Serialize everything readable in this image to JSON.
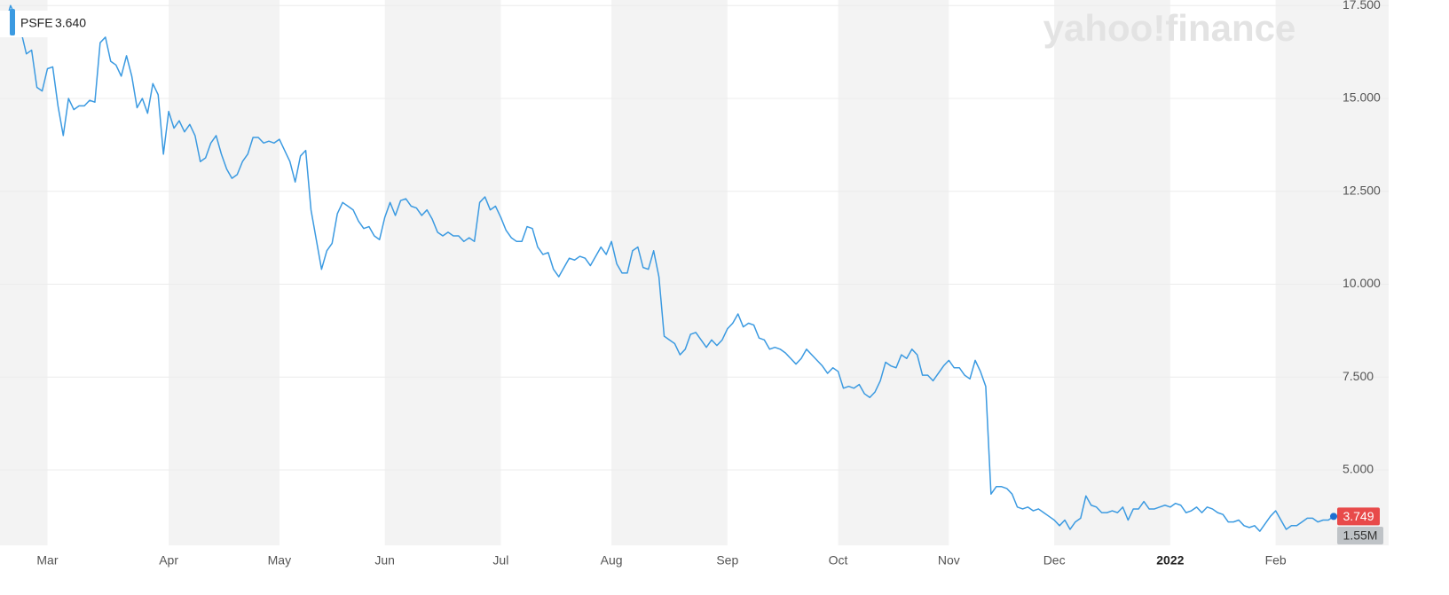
{
  "chart_data": {
    "type": "line",
    "watermark": "yahoo!finance",
    "legend": "top-left",
    "legend_value": {
      "value": 3.64,
      "label": "3.640"
    },
    "last_price": {
      "value": 3.749,
      "label": "3.749"
    },
    "last_volume": {
      "value": 1550000,
      "label": "1.55M"
    },
    "grid": true,
    "ylim": [
      2.97,
      17.65
    ],
    "yticks": [
      {
        "value": 5,
        "label": "5.000"
      },
      {
        "value": 7.5,
        "label": "7.500"
      },
      {
        "value": 10,
        "label": "10.000"
      },
      {
        "value": 12.5,
        "label": "12.500"
      },
      {
        "value": 15,
        "label": "15.000"
      },
      {
        "value": 17.5,
        "label": "17.500"
      }
    ],
    "categories": [
      null,
      null,
      null,
      null,
      null,
      null,
      null,
      null,
      null,
      "Mar",
      null,
      null,
      null,
      null,
      null,
      null,
      null,
      null,
      null,
      null,
      null,
      null,
      null,
      null,
      null,
      null,
      null,
      null,
      null,
      null,
      null,
      null,
      "Apr",
      null,
      null,
      null,
      null,
      null,
      null,
      null,
      null,
      null,
      null,
      null,
      null,
      null,
      null,
      null,
      null,
      null,
      null,
      null,
      null,
      "May",
      null,
      null,
      null,
      null,
      null,
      null,
      null,
      null,
      null,
      null,
      null,
      null,
      null,
      null,
      null,
      null,
      null,
      null,
      null,
      "Jun",
      null,
      null,
      null,
      null,
      null,
      null,
      null,
      null,
      null,
      null,
      null,
      null,
      null,
      null,
      null,
      null,
      null,
      null,
      null,
      null,
      null,
      "Jul",
      null,
      null,
      null,
      null,
      null,
      null,
      null,
      null,
      null,
      null,
      null,
      null,
      null,
      null,
      null,
      null,
      null,
      null,
      null,
      null,
      "Aug",
      null,
      null,
      null,
      null,
      null,
      null,
      null,
      null,
      null,
      null,
      null,
      null,
      null,
      null,
      null,
      null,
      null,
      null,
      null,
      null,
      null,
      "Sep",
      null,
      null,
      null,
      null,
      null,
      null,
      null,
      null,
      null,
      null,
      null,
      null,
      null,
      null,
      null,
      null,
      null,
      null,
      null,
      null,
      "Oct",
      null,
      null,
      null,
      null,
      null,
      null,
      null,
      null,
      null,
      null,
      null,
      null,
      null,
      null,
      null,
      null,
      null,
      null,
      null,
      null,
      "Nov",
      null,
      null,
      null,
      null,
      null,
      null,
      null,
      null,
      null,
      null,
      null,
      null,
      null,
      null,
      null,
      null,
      null,
      null,
      null,
      "Dec",
      null,
      null,
      null,
      null,
      null,
      null,
      null,
      null,
      null,
      null,
      null,
      null,
      null,
      null,
      null,
      null,
      null,
      null,
      null,
      null,
      null,
      "2022",
      null,
      null,
      null,
      null,
      null,
      null,
      null,
      null,
      null,
      null,
      null,
      null,
      null,
      null,
      null,
      null,
      null,
      null,
      null,
      "Feb",
      null,
      null,
      null,
      null,
      null,
      null,
      null,
      null,
      null,
      null,
      null
    ],
    "series": [
      {
        "name": "PSFE",
        "color": "#3b9ae1",
        "values": [
          17.3,
          17.0,
          17.5,
          17.2,
          16.8,
          16.2,
          16.3,
          15.3,
          15.2,
          15.8,
          15.85,
          14.8,
          14.0,
          15.0,
          14.7,
          14.8,
          14.8,
          14.95,
          14.9,
          16.5,
          16.65,
          16.0,
          15.9,
          15.6,
          16.15,
          15.6,
          14.75,
          15.0,
          14.6,
          15.4,
          15.1,
          13.5,
          14.65,
          14.2,
          14.4,
          14.1,
          14.3,
          14.0,
          13.3,
          13.4,
          13.8,
          14.0,
          13.5,
          13.1,
          12.85,
          12.95,
          13.3,
          13.5,
          13.95,
          13.95,
          13.8,
          13.85,
          13.8,
          13.9,
          13.6,
          13.3,
          12.75,
          13.45,
          13.6,
          12.0,
          11.2,
          10.4,
          10.9,
          11.1,
          11.9,
          12.2,
          12.1,
          12.0,
          11.7,
          11.5,
          11.55,
          11.3,
          11.2,
          11.8,
          12.2,
          11.85,
          12.25,
          12.3,
          12.1,
          12.05,
          11.85,
          12.0,
          11.75,
          11.4,
          11.3,
          11.4,
          11.3,
          11.3,
          11.15,
          11.25,
          11.15,
          12.2,
          12.35,
          12.0,
          12.1,
          11.8,
          11.45,
          11.25,
          11.15,
          11.15,
          11.55,
          11.5,
          11.0,
          10.8,
          10.85,
          10.4,
          10.2,
          10.45,
          10.7,
          10.65,
          10.75,
          10.7,
          10.5,
          10.75,
          11.0,
          10.8,
          11.15,
          10.55,
          10.3,
          10.3,
          10.9,
          11.0,
          10.45,
          10.4,
          10.9,
          10.2,
          8.6,
          8.5,
          8.4,
          8.1,
          8.25,
          8.65,
          8.7,
          8.5,
          8.3,
          8.5,
          8.35,
          8.5,
          8.8,
          8.95,
          9.2,
          8.85,
          8.95,
          8.9,
          8.55,
          8.5,
          8.25,
          8.3,
          8.25,
          8.15,
          8.0,
          7.85,
          8.0,
          8.25,
          8.1,
          7.95,
          7.8,
          7.6,
          7.75,
          7.65,
          7.2,
          7.25,
          7.2,
          7.3,
          7.05,
          6.95,
          7.1,
          7.4,
          7.9,
          7.8,
          7.75,
          8.1,
          8.0,
          8.25,
          8.1,
          7.55,
          7.55,
          7.4,
          7.6,
          7.8,
          7.95,
          7.75,
          7.75,
          7.55,
          7.45,
          7.95,
          7.65,
          7.25,
          4.35,
          4.55,
          4.55,
          4.5,
          4.35,
          4.0,
          3.95,
          4.0,
          3.9,
          3.95,
          3.85,
          3.75,
          3.65,
          3.5,
          3.65,
          3.4,
          3.6,
          3.7,
          4.3,
          4.05,
          4.0,
          3.85,
          3.85,
          3.9,
          3.85,
          4.0,
          3.65,
          3.95,
          3.95,
          4.15,
          3.95,
          3.95,
          4.0,
          4.05,
          4.0,
          4.1,
          4.05,
          3.85,
          3.9,
          4.0,
          3.85,
          4.0,
          3.95,
          3.85,
          3.8,
          3.6,
          3.6,
          3.65,
          3.5,
          3.45,
          3.5,
          3.35,
          3.55,
          3.75,
          3.9,
          3.65,
          3.4,
          3.5,
          3.5,
          3.6,
          3.7,
          3.7,
          3.6,
          3.65,
          3.65,
          3.749
        ]
      }
    ]
  }
}
